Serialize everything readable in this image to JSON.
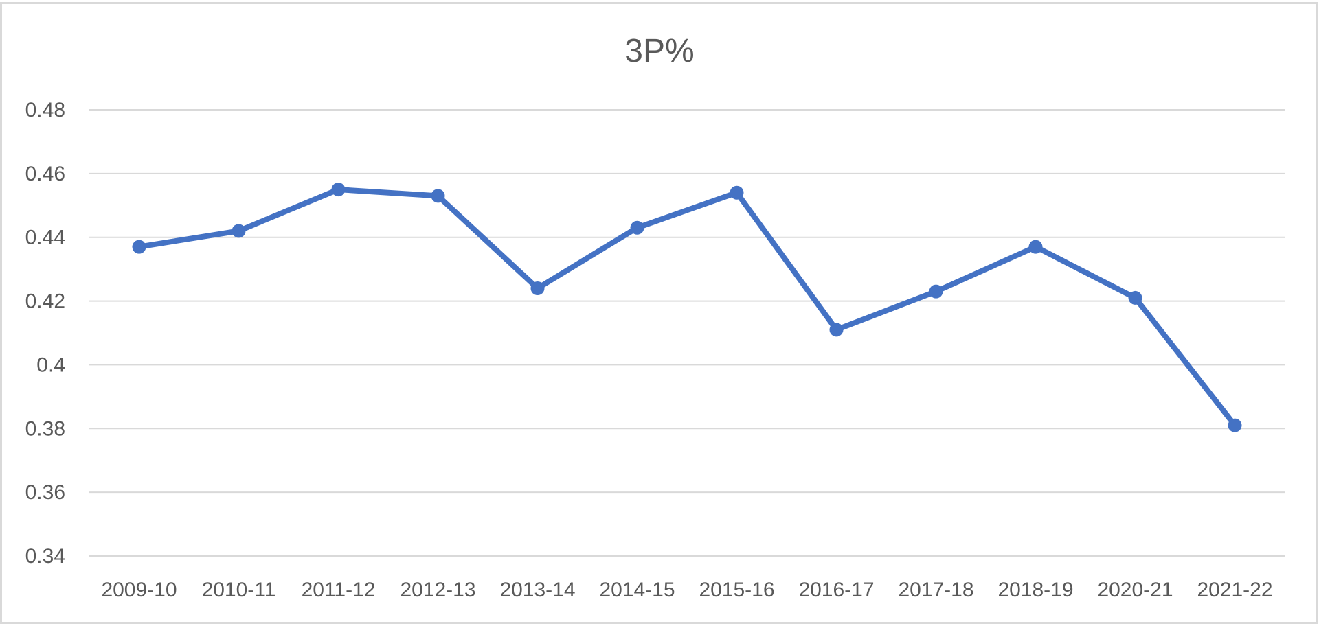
{
  "chart_data": {
    "type": "line",
    "title": "3P%",
    "xlabel": "",
    "ylabel": "",
    "categories": [
      "2009-10",
      "2010-11",
      "2011-12",
      "2012-13",
      "2013-14",
      "2014-15",
      "2015-16",
      "2016-17",
      "2017-18",
      "2018-19",
      "2020-21",
      "2021-22"
    ],
    "series": [
      {
        "values": [
          0.437,
          0.442,
          0.455,
          0.453,
          0.424,
          0.443,
          0.454,
          0.411,
          0.423,
          0.437,
          0.421,
          0.381
        ]
      }
    ],
    "ylim": [
      0.34,
      0.48
    ],
    "y_ticks": [
      "0.34",
      "0.36",
      "0.38",
      "0.4",
      "0.42",
      "0.44",
      "0.46",
      "0.48"
    ],
    "grid": "horizontal",
    "legend": "none",
    "colors": {
      "line": "#4472C4",
      "grid": "#D9D9D9",
      "text": "#595959",
      "border": "#D9D9D9"
    }
  }
}
